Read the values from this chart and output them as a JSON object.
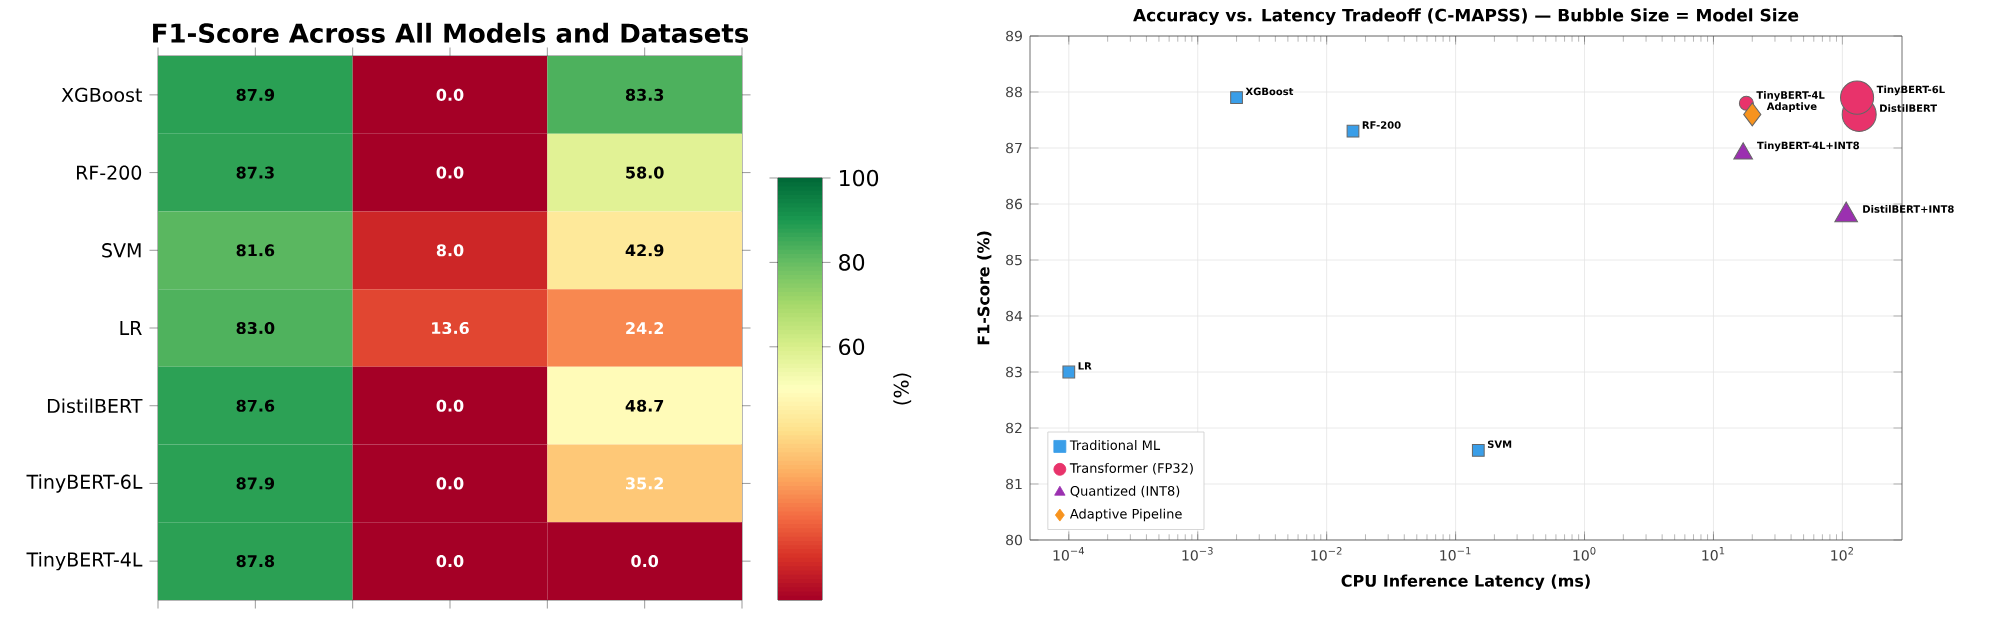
{
  "chart_data": [
    {
      "type": "heatmap",
      "title": "F1-Score Across All Models and Datasets",
      "categories": [
        null,
        null,
        null
      ],
      "y_categories": [
        "XGBoost",
        "RF-200",
        "SVM",
        "LR",
        "DistilBERT",
        "TinyBERT-6L",
        "TinyBERT-4L"
      ],
      "cells": [
        [
          87.9,
          0.0,
          83.3
        ],
        [
          87.3,
          0.0,
          58.0
        ],
        [
          81.6,
          8.0,
          42.9
        ],
        [
          83.0,
          13.6,
          24.2
        ],
        [
          87.6,
          0.0,
          48.7
        ],
        [
          87.9,
          0.0,
          35.2
        ],
        [
          87.8,
          0.0,
          0.0
        ]
      ],
      "cell_labels": [
        [
          "87.9",
          "0.0",
          "83.3"
        ],
        [
          "87.3",
          "0.0",
          "58.0"
        ],
        [
          "81.6",
          "8.0",
          "42.9"
        ],
        [
          "83.0",
          "13.6",
          "24.2"
        ],
        [
          "87.6",
          "0.0",
          "48.7"
        ],
        [
          "87.9",
          "0.0",
          "35.2"
        ],
        [
          "87.8",
          "0.0",
          "0.0"
        ]
      ],
      "clim": [
        0,
        100
      ],
      "cticks": [
        60,
        80,
        100
      ],
      "clabel": "(%)"
    },
    {
      "type": "bubble",
      "title": "Accuracy vs. Latency Tradeoff (C-MAPSS) — Bubble Size = Model Size",
      "xlabel": "CPU Inference Latency (ms)",
      "ylabel": "F1-Score (%)",
      "log": "x",
      "grid": true,
      "legend": "bottom left",
      "xlim": [
        5e-05,
        290
      ],
      "ylim": [
        80,
        89
      ],
      "xticks": [
        {
          "value": 0.0001,
          "label": "10$^{−4}$"
        },
        {
          "value": 0.001,
          "label": "10$^{−3}$"
        },
        {
          "value": 0.01,
          "label": "10$^{−2}$"
        },
        {
          "value": 0.1,
          "label": "10$^{−1}$"
        },
        {
          "value": 1,
          "label": "10$^{0}$"
        },
        {
          "value": 10,
          "label": "10$^{1}$"
        },
        {
          "value": 100,
          "label": "10$^{2}$"
        }
      ],
      "yticks": [
        80,
        81,
        82,
        83,
        84,
        85,
        86,
        87,
        88,
        89
      ],
      "series": [
        {
          "name": "Traditional ML",
          "color": "#3a9ee8",
          "marker": "square",
          "x": [
            0.002,
            0.016,
            0.15,
            0.0001
          ],
          "values": [
            87.9,
            87.3,
            81.6,
            83.0
          ],
          "sizes": [
            0.12,
            0.12,
            0.12,
            0.12
          ]
        },
        {
          "name": "Transformer (FP32)",
          "color": "#e8336b",
          "marker": "circle",
          "x": [
            135,
            130,
            18
          ],
          "values": [
            87.6,
            87.9,
            87.8
          ],
          "sizes": [
            1,
            0.95,
            0.17
          ]
        },
        {
          "name": "Quantized (INT8)",
          "color": "#9b30b0",
          "marker": "triangle",
          "x": [
            107,
            17
          ],
          "values": [
            85.8,
            86.9
          ],
          "sizes": [
            0.25,
            0.17
          ]
        },
        {
          "name": "Adaptive Pipeline",
          "color": "#f7931e",
          "marker": "diamond",
          "x": [
            20
          ],
          "values": [
            87.6
          ],
          "sizes": [
            0.22
          ]
        }
      ],
      "annotations": [
        {
          "text": "XGBoost",
          "x": 0.002,
          "y": 87.9
        },
        {
          "text": "RF-200",
          "x": 0.016,
          "y": 87.3
        },
        {
          "text": "SVM",
          "x": 0.15,
          "y": 81.6
        },
        {
          "text": "LR",
          "x": 0.0001,
          "y": 83.0
        },
        {
          "text": "DistilBERT",
          "x": 135,
          "y": 87.6
        },
        {
          "text": "TinyBERT-6L",
          "x": 130,
          "y": 87.9
        },
        {
          "text": "TinyBERT-4L",
          "x": 18,
          "y": 87.8
        },
        {
          "text": "DistilBERT+INT8",
          "x": 107,
          "y": 85.8
        },
        {
          "text": "TinyBERT-4L+INT8",
          "x": 17,
          "y": 86.9
        },
        {
          "text": "Adaptive",
          "x": 20,
          "y": 87.6
        }
      ]
    }
  ]
}
